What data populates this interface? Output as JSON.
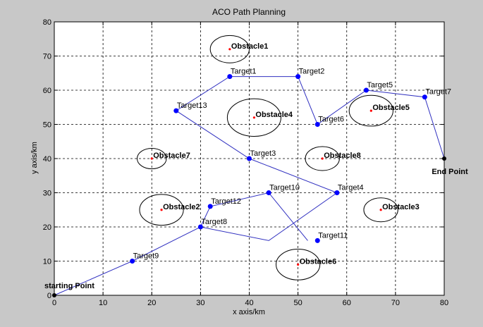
{
  "chart_data": {
    "type": "line",
    "title": "ACO Path Planning",
    "xlabel": "x axis/km",
    "ylabel": "y axis/km",
    "xlim": [
      0,
      80
    ],
    "ylim": [
      0,
      80
    ],
    "xticks": [
      0,
      10,
      20,
      30,
      40,
      50,
      60,
      70,
      80
    ],
    "yticks": [
      0,
      10,
      20,
      30,
      40,
      50,
      60,
      70,
      80
    ],
    "grid": true,
    "colors": {
      "background": "#c8c8c8",
      "plot_area": "#ffffff",
      "path": "#3030c0",
      "node": "#0000ff",
      "endpoint": "#000000",
      "obstacle_center": "#ff0000",
      "obstacle_outline": "#000000"
    },
    "path": [
      [
        0,
        0
      ],
      [
        16,
        10
      ],
      [
        30,
        20
      ],
      [
        44,
        16
      ],
      [
        58,
        30
      ],
      [
        40,
        40
      ],
      [
        25,
        54
      ],
      [
        36,
        64
      ],
      [
        50,
        64
      ],
      [
        54,
        50
      ],
      [
        64,
        60
      ],
      [
        76,
        58
      ],
      [
        80,
        40
      ]
    ],
    "path2": [
      [
        30,
        20
      ],
      [
        32,
        26
      ],
      [
        44,
        30
      ],
      [
        52,
        16
      ]
    ],
    "start": {
      "label": "starting Point",
      "x": 0,
      "y": 0
    },
    "end": {
      "label": "End Point",
      "x": 80,
      "y": 40
    },
    "targets": [
      {
        "label": "Target1",
        "x": 36,
        "y": 64
      },
      {
        "label": "Target2",
        "x": 50,
        "y": 64
      },
      {
        "label": "Target3",
        "x": 40,
        "y": 40
      },
      {
        "label": "Target4",
        "x": 58,
        "y": 30
      },
      {
        "label": "Target5",
        "x": 64,
        "y": 60
      },
      {
        "label": "Target6",
        "x": 54,
        "y": 50
      },
      {
        "label": "Target7",
        "x": 76,
        "y": 58
      },
      {
        "label": "Target8",
        "x": 30,
        "y": 20
      },
      {
        "label": "Target9",
        "x": 16,
        "y": 10
      },
      {
        "label": "Target10",
        "x": 44,
        "y": 30
      },
      {
        "label": "Target11",
        "x": 54,
        "y": 16
      },
      {
        "label": "Target12",
        "x": 32,
        "y": 26
      },
      {
        "label": "Target13",
        "x": 25,
        "y": 54
      }
    ],
    "obstacles": [
      {
        "label": "Obstacle1",
        "x": 36,
        "y": 72,
        "rx": 4,
        "ry": 4
      },
      {
        "label": "Obstacle2",
        "x": 22,
        "y": 25,
        "rx": 4.5,
        "ry": 4.5
      },
      {
        "label": "Obstacle3",
        "x": 67,
        "y": 25,
        "rx": 3.5,
        "ry": 3.5
      },
      {
        "label": "Obstacle4",
        "x": 41,
        "y": 52,
        "rx": 5.5,
        "ry": 5.5
      },
      {
        "label": "Obstacle5",
        "x": 65,
        "y": 54,
        "rx": 4.5,
        "ry": 4.5
      },
      {
        "label": "Obstacle6",
        "x": 50,
        "y": 9,
        "rx": 4.5,
        "ry": 4.5
      },
      {
        "label": "Obstacle7",
        "x": 20,
        "y": 40,
        "rx": 3,
        "ry": 3
      },
      {
        "label": "Obstacle8",
        "x": 55,
        "y": 40,
        "rx": 3.5,
        "ry": 3.5
      }
    ]
  }
}
